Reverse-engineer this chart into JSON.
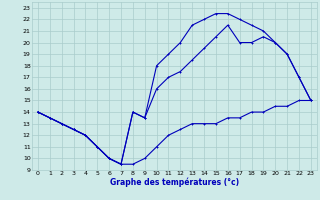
{
  "xlabel": "Graphe des températures (°c)",
  "xlim": [
    -0.5,
    23.5
  ],
  "ylim": [
    9,
    23.5
  ],
  "yticks": [
    9,
    10,
    11,
    12,
    13,
    14,
    15,
    16,
    17,
    18,
    19,
    20,
    21,
    22,
    23
  ],
  "xticks": [
    0,
    1,
    2,
    3,
    4,
    5,
    6,
    7,
    8,
    9,
    10,
    11,
    12,
    13,
    14,
    15,
    16,
    17,
    18,
    19,
    20,
    21,
    22,
    23
  ],
  "bg_color": "#ceeae8",
  "grid_color": "#aacccc",
  "line_color": "#0000bb",
  "line1_x": [
    0,
    1,
    2,
    3,
    4,
    5,
    6,
    7,
    8,
    9,
    10,
    11,
    12,
    13,
    14,
    15,
    16,
    17,
    18,
    19,
    20,
    21,
    22,
    23
  ],
  "line1_y": [
    14,
    13.5,
    13,
    12.5,
    12,
    11,
    10,
    9.5,
    9.5,
    10,
    11,
    12,
    12.5,
    13,
    13,
    13,
    13.5,
    13.5,
    14,
    14,
    14.5,
    14.5,
    15,
    15
  ],
  "line2_x": [
    0,
    1,
    2,
    3,
    4,
    5,
    6,
    7,
    8,
    9,
    10,
    11,
    12,
    13,
    14,
    15,
    16,
    17,
    18,
    19,
    20,
    21,
    22,
    23
  ],
  "line2_y": [
    14,
    13.5,
    13,
    12.5,
    12,
    11,
    10,
    9.5,
    14,
    13.5,
    18,
    19,
    20,
    21.5,
    22,
    22.5,
    22.5,
    22,
    21.5,
    21,
    20,
    19,
    17,
    15
  ],
  "line3_x": [
    0,
    1,
    2,
    3,
    4,
    5,
    6,
    7,
    8,
    9,
    10,
    11,
    12,
    13,
    14,
    15,
    16,
    17,
    18,
    19,
    20,
    21,
    22,
    23
  ],
  "line3_y": [
    14,
    13.5,
    13,
    12.5,
    12,
    11,
    10,
    9.5,
    14,
    13.5,
    16,
    17,
    17.5,
    18.5,
    19.5,
    20.5,
    21.5,
    20,
    20,
    20.5,
    20,
    19,
    17,
    15
  ]
}
